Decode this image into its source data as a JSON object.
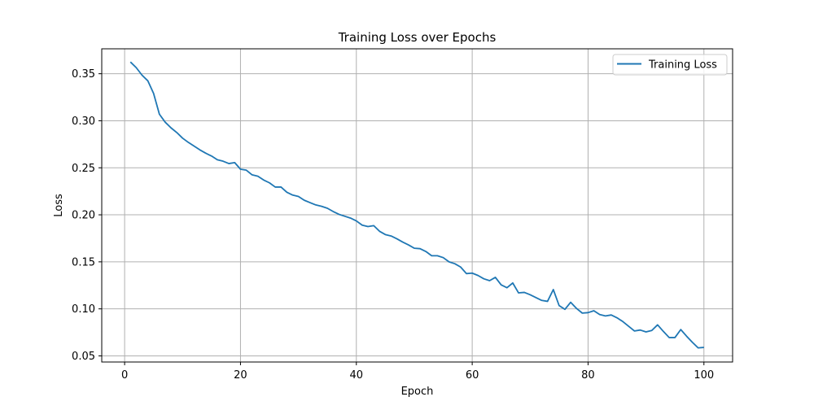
{
  "chart_data": {
    "type": "line",
    "title": "Training Loss over Epochs",
    "xlabel": "Epoch",
    "ylabel": "Loss",
    "xlim": [
      -3.95,
      104.95
    ],
    "ylim": [
      0.0435,
      0.3765
    ],
    "xticks": [
      0,
      20,
      40,
      60,
      80,
      100
    ],
    "xtick_labels": [
      "0",
      "20",
      "40",
      "60",
      "80",
      "100"
    ],
    "yticks": [
      0.05,
      0.1,
      0.15,
      0.2,
      0.25,
      0.3,
      0.35
    ],
    "ytick_labels": [
      "0.05",
      "0.10",
      "0.15",
      "0.20",
      "0.25",
      "0.30",
      "0.35"
    ],
    "grid": true,
    "legend_position": "top-right",
    "series": [
      {
        "name": "Training Loss",
        "color": "#1f77b4",
        "x": [
          1,
          2,
          3,
          4,
          5,
          6,
          7,
          8,
          9,
          10,
          11,
          12,
          13,
          14,
          15,
          16,
          17,
          18,
          19,
          20,
          21,
          22,
          23,
          24,
          25,
          26,
          27,
          28,
          29,
          30,
          31,
          32,
          33,
          34,
          35,
          36,
          37,
          38,
          39,
          40,
          41,
          42,
          43,
          44,
          45,
          46,
          47,
          48,
          49,
          50,
          51,
          52,
          53,
          54,
          55,
          56,
          57,
          58,
          59,
          60,
          61,
          62,
          63,
          64,
          65,
          66,
          67,
          68,
          69,
          70,
          71,
          72,
          73,
          74,
          75,
          76,
          77,
          78,
          79,
          80,
          81,
          82,
          83,
          84,
          85,
          86,
          87,
          88,
          89,
          90,
          91,
          92,
          93,
          94,
          95,
          96,
          97,
          98,
          99,
          100
        ],
        "y": [
          0.3625,
          0.3565,
          0.3485,
          0.3425,
          0.329,
          0.307,
          0.2985,
          0.2925,
          0.2875,
          0.2815,
          0.277,
          0.273,
          0.269,
          0.2655,
          0.2625,
          0.2585,
          0.257,
          0.2545,
          0.2555,
          0.2485,
          0.2475,
          0.2425,
          0.241,
          0.237,
          0.234,
          0.2295,
          0.2295,
          0.224,
          0.221,
          0.2195,
          0.2155,
          0.213,
          0.2105,
          0.209,
          0.207,
          0.2035,
          0.2005,
          0.1985,
          0.1965,
          0.1935,
          0.189,
          0.1875,
          0.1885,
          0.1825,
          0.179,
          0.1775,
          0.1745,
          0.171,
          0.168,
          0.1645,
          0.164,
          0.161,
          0.1565,
          0.1565,
          0.1545,
          0.15,
          0.148,
          0.1445,
          0.1375,
          0.138,
          0.1355,
          0.132,
          0.13,
          0.1335,
          0.1255,
          0.1225,
          0.1275,
          0.117,
          0.1175,
          0.115,
          0.112,
          0.109,
          0.108,
          0.1205,
          0.1035,
          0.0995,
          0.107,
          0.1005,
          0.0955,
          0.096,
          0.098,
          0.094,
          0.0925,
          0.0935,
          0.0905,
          0.0865,
          0.0815,
          0.0765,
          0.0775,
          0.0755,
          0.077,
          0.083,
          0.076,
          0.0695,
          0.0695,
          0.078,
          0.071,
          0.0645,
          0.0585,
          0.059
        ]
      }
    ]
  }
}
